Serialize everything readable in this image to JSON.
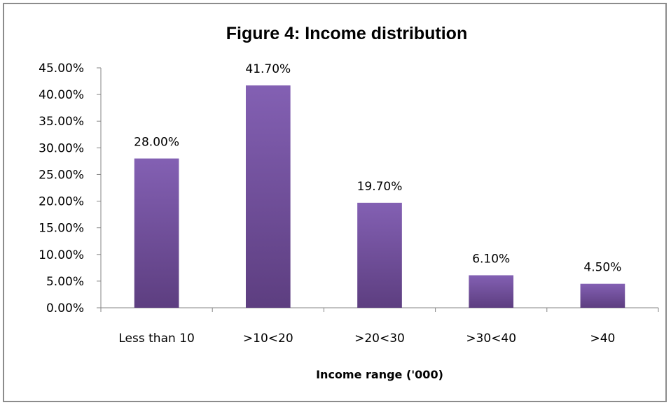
{
  "chart_data": {
    "type": "bar",
    "title": "Figure 4: Income distribution",
    "xlabel": "Income range ('000)",
    "ylabel": "",
    "categories": [
      "Less than 10",
      ">10<20",
      ">20<30",
      ">30<40",
      ">40"
    ],
    "values": [
      28.0,
      41.7,
      19.7,
      6.1,
      4.5
    ],
    "data_labels": [
      "28.00%",
      "41.70%",
      "19.70%",
      "6.10%",
      "4.50%"
    ],
    "ylim": [
      0,
      45
    ],
    "yticks": [
      0,
      5,
      10,
      15,
      20,
      25,
      30,
      35,
      40,
      45
    ],
    "ytick_labels": [
      "0.00%",
      "5.00%",
      "10.00%",
      "15.00%",
      "20.00%",
      "25.00%",
      "30.00%",
      "35.00%",
      "40.00%",
      "45.00%"
    ],
    "grid": false,
    "legend": "none",
    "colors": {
      "bar_top": "#8360b3",
      "bar_bottom": "#5d3e80",
      "axis": "#868686",
      "frame": "#8c8c8c"
    }
  }
}
